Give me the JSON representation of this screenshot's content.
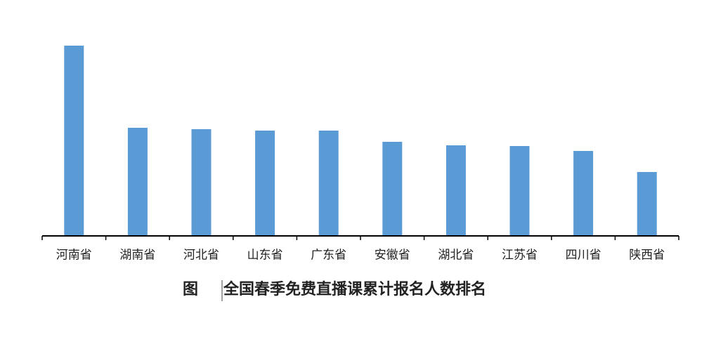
{
  "chart_data": {
    "type": "bar",
    "figure_label": "图",
    "title": "全国春季免费直播课累计报名人数排名",
    "categories": [
      "河南省",
      "湖南省",
      "河北省",
      "山东省",
      "广东省",
      "安徽省",
      "湖北省",
      "江苏省",
      "四川省",
      "陕西省"
    ],
    "values": [
      271,
      154,
      152,
      150,
      150,
      134,
      129,
      128,
      121,
      91
    ],
    "color": "#5b9bd5",
    "ylim": [
      0,
      300
    ]
  }
}
